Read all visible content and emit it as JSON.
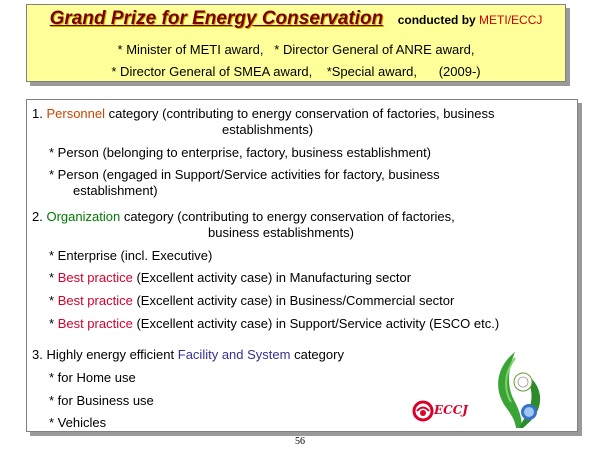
{
  "header": {
    "title": "Grand Prize for Energy Conservation",
    "conducted_by_label": "conducted by",
    "conducted_by_org": "METI/ECCJ",
    "awards_line1": "* Minister of METI award,   * Director General of ANRE award,",
    "awards_line2": "* Director General of SMEA award,    *Special award,      (2009-)"
  },
  "categories": {
    "c1": {
      "num": "1.",
      "keyword": "Personnel",
      "text": "category (contributing to energy conservation of factories, business",
      "text2": "establishments)",
      "items": [
        "* Person (belonging to enterprise, factory, business establishment)",
        "* Person (engaged in Support/Service activities for factory, business",
        "establishment)"
      ]
    },
    "c2": {
      "num": "2.",
      "keyword": "Organization",
      "text": "category (contributing to energy conservation of factories,",
      "text2": "business establishments)",
      "item1": "* Enterprise (incl. Executive)",
      "bp_bullet": "*",
      "bp_label": "Best practice",
      "bp_items": [
        "(Excellent activity case) in Manufacturing sector",
        "(Excellent activity case) in Business/Commercial sector",
        "(Excellent activity case) in Support/Service activity (ESCO etc.)"
      ]
    },
    "c3": {
      "num": "3.",
      "prefix": "Highly energy efficient",
      "keyword": "Facility and System",
      "suffix": "category",
      "items": [
        "* for Home use",
        "* for Business use",
        "* Vehicles"
      ]
    }
  },
  "logo": {
    "text": "ECCJ"
  },
  "page_number": "56",
  "colors": {
    "header_bg": "#ffff99",
    "title": "#7a0000",
    "red": "#d9002a",
    "orange": "#cc4400",
    "green": "#007a00",
    "blue": "#33338f"
  }
}
